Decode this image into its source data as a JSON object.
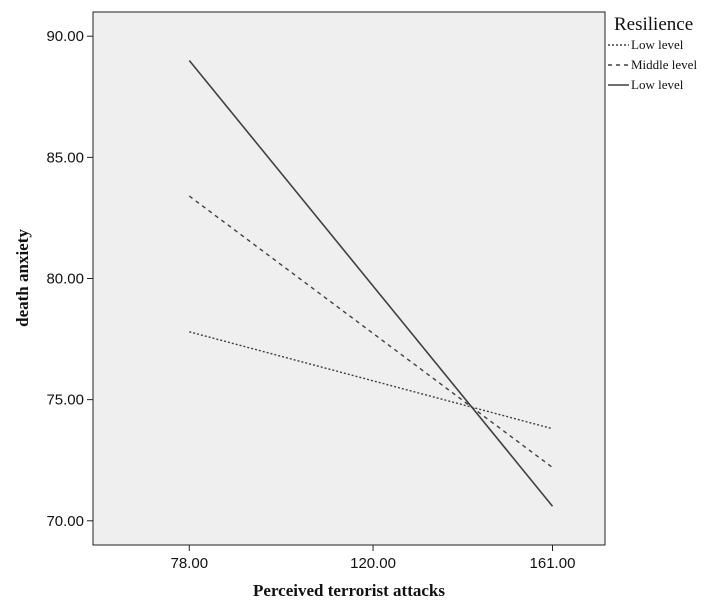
{
  "chart_data": {
    "type": "line",
    "xlabel": "Perceived terrorist attacks",
    "ylabel": "death anxiety",
    "x_ticks": [
      "78.00",
      "120.00",
      "161.00"
    ],
    "y_ticks": [
      "70.00",
      "75.00",
      "80.00",
      "85.00",
      "90.00"
    ],
    "xlim": [
      56,
      173
    ],
    "ylim": [
      69.0,
      91.0
    ],
    "grid": false,
    "legend": {
      "title": "Resilience",
      "position": "right, outside plot",
      "entries": [
        "Low level",
        "Middle level",
        "Low level"
      ]
    },
    "series": [
      {
        "name": "Low level",
        "style": "dotted",
        "x": [
          78,
          161
        ],
        "y": [
          77.8,
          73.8
        ]
      },
      {
        "name": "Middle level",
        "style": "dashed",
        "x": [
          78,
          161
        ],
        "y": [
          83.4,
          72.2
        ]
      },
      {
        "name": "Low level",
        "style": "solid",
        "x": [
          78,
          161
        ],
        "y": [
          89.0,
          70.6
        ]
      }
    ],
    "colors": {
      "background": "#efefef",
      "line": "#404040"
    }
  }
}
